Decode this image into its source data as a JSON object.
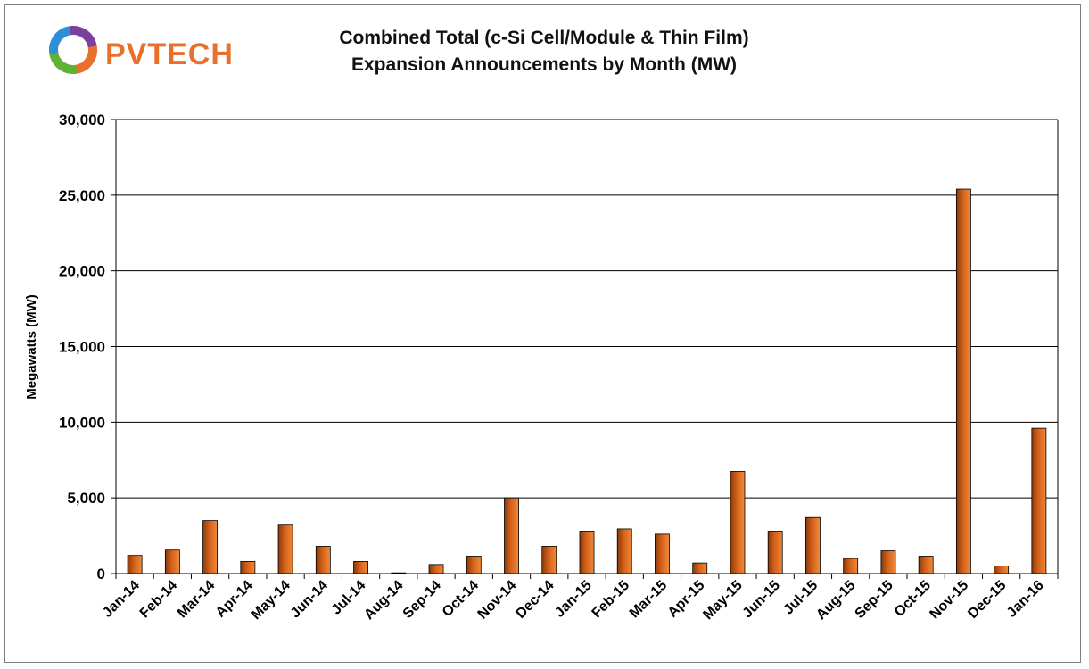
{
  "logo": {
    "text": "PVTECH",
    "icon": "pvtech-ring-logo-icon"
  },
  "chart_data": {
    "type": "bar",
    "title_line1": "Combined Total (c-Si Cell/Module & Thin Film)",
    "title_line2": "Expansion Announcements by Month (MW)",
    "xlabel": "",
    "ylabel": "Megawatts (MW)",
    "ylim": [
      0,
      30000
    ],
    "yticks": [
      0,
      5000,
      10000,
      15000,
      20000,
      25000,
      30000
    ],
    "ytick_labels": [
      "0",
      "5,000",
      "10,000",
      "15,000",
      "20,000",
      "25,000",
      "30,000"
    ],
    "grid": true,
    "legend": "none",
    "bar_color": "#d4611a",
    "categories": [
      "Jan-14",
      "Feb-14",
      "Mar-14",
      "Apr-14",
      "May-14",
      "Jun-14",
      "Jul-14",
      "Aug-14",
      "Sep-14",
      "Oct-14",
      "Nov-14",
      "Dec-14",
      "Jan-15",
      "Feb-15",
      "Mar-15",
      "Apr-15",
      "May-15",
      "Jun-15",
      "Jul-15",
      "Aug-15",
      "Sep-15",
      "Oct-15",
      "Nov-15",
      "Dec-15",
      "Jan-16"
    ],
    "values": [
      1200,
      1550,
      3500,
      800,
      3200,
      1800,
      800,
      50,
      600,
      1150,
      5000,
      1800,
      2800,
      2950,
      2600,
      700,
      6750,
      2800,
      3700,
      1000,
      1500,
      1150,
      25400,
      500,
      9600
    ]
  }
}
